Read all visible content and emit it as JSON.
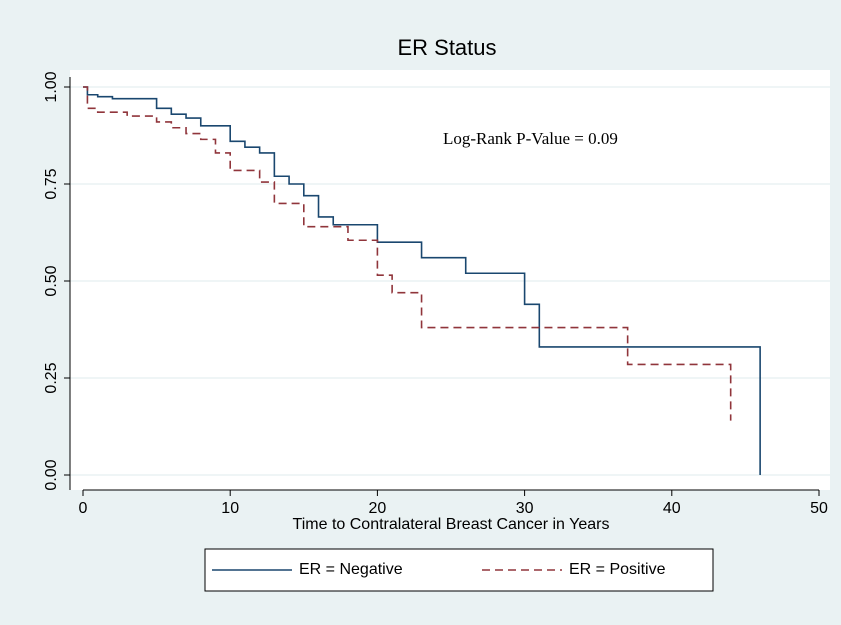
{
  "chart_data": {
    "type": "step",
    "title": "ER Status",
    "x_label": "Time to Contralateral Breast Cancer in Years",
    "annotation": "Log-Rank P-Value = 0.09",
    "xlim": [
      0,
      50
    ],
    "xticks": [
      0,
      10,
      20,
      30,
      40,
      50
    ],
    "ylim": [
      0,
      1
    ],
    "yticks": [
      {
        "value": 0,
        "label": "0.00"
      },
      0.25,
      {
        "value": 0.5,
        "label": "0.50"
      },
      0.75,
      {
        "value": 1,
        "label": "1.00"
      }
    ],
    "grid": true,
    "series": [
      {
        "name": "ER = Negative",
        "color": "#1a476f",
        "dash": "solid",
        "x": [
          0,
          0.3,
          1,
          2,
          5,
          6,
          7,
          8,
          10,
          11,
          12,
          13,
          14,
          15,
          16,
          17,
          20,
          23,
          26,
          30,
          31,
          46
        ],
        "values": [
          1,
          0.98,
          0.975,
          0.97,
          0.945,
          0.93,
          0.92,
          0.9,
          0.86,
          0.845,
          0.83,
          0.77,
          0.75,
          0.72,
          0.665,
          0.645,
          0.6,
          0.56,
          0.52,
          0.44,
          0.33,
          0
        ]
      },
      {
        "name": "ER = Positive",
        "color": "#90353b",
        "dash": "dashed",
        "x": [
          0,
          0.3,
          1,
          3,
          5,
          6,
          7,
          8,
          9,
          10,
          12,
          13,
          15,
          18,
          20,
          21,
          23,
          37,
          44
        ],
        "values": [
          1,
          0.945,
          0.935,
          0.925,
          0.91,
          0.895,
          0.88,
          0.865,
          0.83,
          0.785,
          0.755,
          0.7,
          0.64,
          0.605,
          0.515,
          0.47,
          0.38,
          0.285,
          0.14
        ]
      }
    ]
  }
}
